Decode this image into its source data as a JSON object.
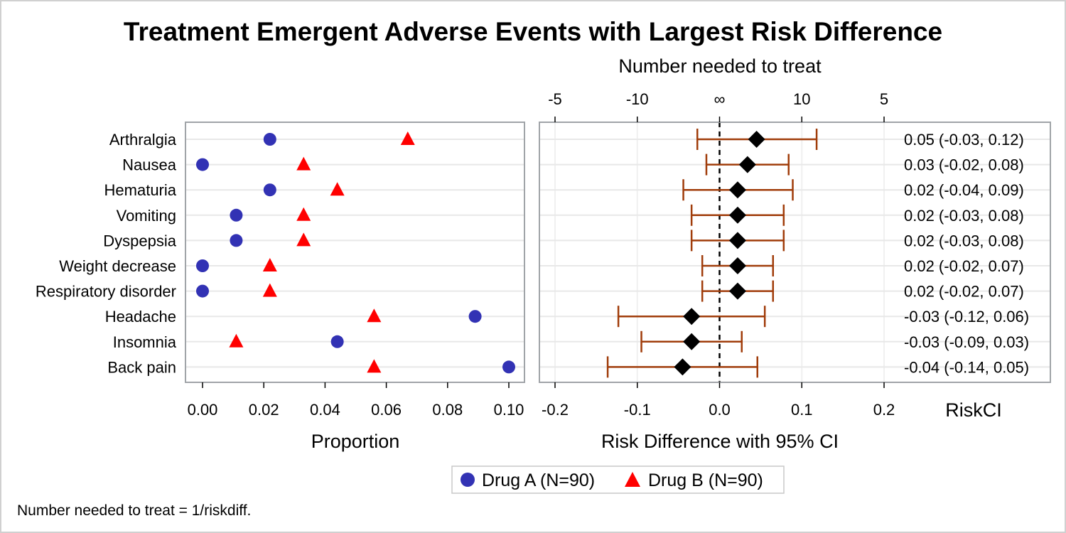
{
  "title": "Treatment Emergent Adverse Events with Largest Risk Difference",
  "footnote": "Number needed to treat = 1/riskdiff.",
  "colors": {
    "drug_a": "#3232b4",
    "drug_b": "#ff0000",
    "risk_marker": "#000000",
    "ci_bar": "#a03c0a",
    "frame": "#a0a4a8",
    "grid": "#e8e8e8"
  },
  "chart_data": [
    {
      "type": "scatter",
      "xlabel": "Proportion",
      "xlim": [
        0,
        0.1
      ],
      "xticks": [
        "0.00",
        "0.02",
        "0.04",
        "0.06",
        "0.08",
        "0.10"
      ],
      "grid": "horizontal",
      "categories": [
        "Arthralgia",
        "Nausea",
        "Hematuria",
        "Vomiting",
        "Dyspepsia",
        "Weight decrease",
        "Respiratory disorder",
        "Headache",
        "Insomnia",
        "Back pain"
      ],
      "series": [
        {
          "name": "Drug A (N=90)",
          "marker": "circle",
          "values": [
            0.022,
            0.0,
            0.022,
            0.011,
            0.011,
            0.0,
            0.0,
            0.089,
            0.044,
            0.1
          ]
        },
        {
          "name": "Drug B (N=90)",
          "marker": "triangle",
          "values": [
            0.067,
            0.033,
            0.044,
            0.033,
            0.033,
            0.022,
            0.022,
            0.056,
            0.011,
            0.056
          ]
        }
      ],
      "legend": "bottom-center"
    },
    {
      "type": "scatter",
      "xlabel": "Risk Difference with 95% CI",
      "x2label": "Number needed to treat",
      "xlim": [
        -0.2,
        0.2
      ],
      "xticks": [
        "-0.2",
        "-0.1",
        "0.0",
        "0.1",
        "0.2"
      ],
      "x2ticks": [
        {
          "label": "-5",
          "at": -0.2
        },
        {
          "label": "-10",
          "at": -0.1
        },
        {
          "label": "∞",
          "at": 0
        },
        {
          "label": "10",
          "at": 0.1
        },
        {
          "label": "5",
          "at": 0.2
        }
      ],
      "reference_line": 0,
      "ci_column_label": "RiskCI",
      "rows": [
        {
          "label": "Arthralgia",
          "risk": 0.045,
          "lower": -0.027,
          "upper": 0.118,
          "text": "0.05 (-0.03, 0.12)"
        },
        {
          "label": "Nausea",
          "risk": 0.034,
          "lower": -0.016,
          "upper": 0.084,
          "text": "0.03 (-0.02, 0.08)"
        },
        {
          "label": "Hematuria",
          "risk": 0.022,
          "lower": -0.044,
          "upper": 0.089,
          "text": "0.02 (-0.04, 0.09)"
        },
        {
          "label": "Vomiting",
          "risk": 0.022,
          "lower": -0.034,
          "upper": 0.078,
          "text": "0.02 (-0.03, 0.08)"
        },
        {
          "label": "Dyspepsia",
          "risk": 0.022,
          "lower": -0.034,
          "upper": 0.078,
          "text": "0.02 (-0.03, 0.08)"
        },
        {
          "label": "Weight decrease",
          "risk": 0.022,
          "lower": -0.021,
          "upper": 0.065,
          "text": "0.02 (-0.02, 0.07)"
        },
        {
          "label": "Respiratory disorder",
          "risk": 0.022,
          "lower": -0.021,
          "upper": 0.065,
          "text": "0.02 (-0.02, 0.07)"
        },
        {
          "label": "Headache",
          "risk": -0.034,
          "lower": -0.123,
          "upper": 0.055,
          "text": "-0.03 (-0.12, 0.06)"
        },
        {
          "label": "Insomnia",
          "risk": -0.034,
          "lower": -0.095,
          "upper": 0.027,
          "text": "-0.03 (-0.09, 0.03)"
        },
        {
          "label": "Back pain",
          "risk": -0.045,
          "lower": -0.136,
          "upper": 0.046,
          "text": "-0.04 (-0.14, 0.05)"
        }
      ]
    }
  ]
}
